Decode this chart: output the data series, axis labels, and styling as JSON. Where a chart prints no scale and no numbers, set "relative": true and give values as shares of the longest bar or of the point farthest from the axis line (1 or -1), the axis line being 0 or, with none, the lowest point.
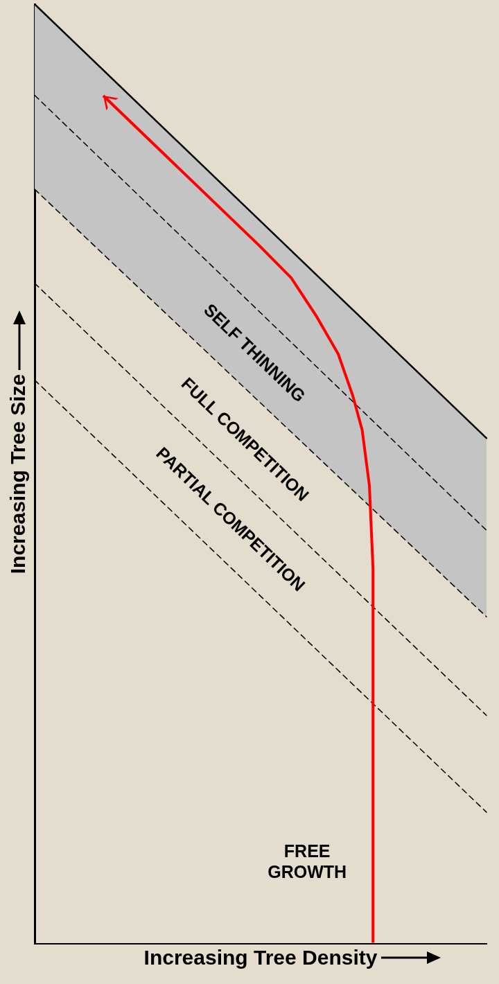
{
  "chart_data": {
    "type": "line",
    "relative": true,
    "xlabel": "Increasing Tree Density",
    "ylabel": "Increasing Tree Size",
    "categories": [
      null,
      null
    ],
    "tick_labels": false,
    "marker": "none",
    "series": [
      {
        "color": "#000000",
        "line_style": "solid",
        "values": [
          1.0,
          0.538
        ],
        "lower": [
          0.803,
          0.348
        ],
        "upper": [
          1.0,
          0.538
        ]
      },
      {
        "color": "#000000",
        "line_style": "dashed",
        "values": [
          0.903,
          0.44
        ]
      },
      {
        "color": "#000000",
        "line_style": "dashed",
        "values": [
          0.803,
          0.348
        ]
      },
      {
        "color": "#000000",
        "line_style": "dashed",
        "values": [
          0.703,
          0.243
        ]
      },
      {
        "color": "#000000",
        "line_style": "dashed",
        "values": [
          0.6,
          0.14
        ]
      }
    ],
    "annotations": [
      "SELF THINNING",
      "FULL COMPETITION",
      "PARTIAL COMPETITION",
      "FREE\nGROWTH"
    ]
  }
}
